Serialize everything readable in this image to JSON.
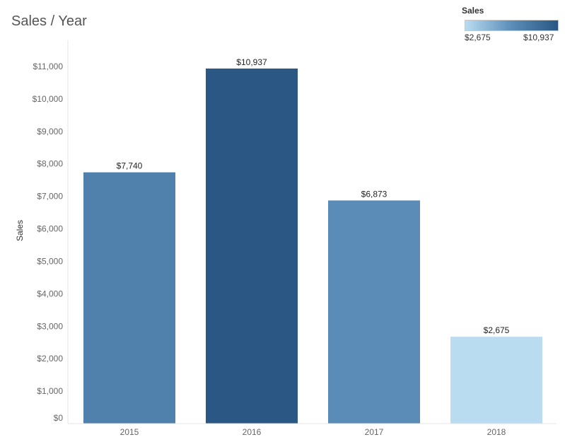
{
  "chart_data": {
    "type": "bar",
    "title": "Sales / Year",
    "xlabel": "",
    "ylabel": "Sales",
    "categories": [
      "2015",
      "2016",
      "2017",
      "2018"
    ],
    "values": [
      7740,
      10937,
      6873,
      2675
    ],
    "data_labels": [
      "$7,740",
      "$10,937",
      "$6,873",
      "$2,675"
    ],
    "ylim": [
      0,
      11500
    ],
    "yticks": [
      0,
      1000,
      2000,
      3000,
      4000,
      5000,
      6000,
      7000,
      8000,
      9000,
      10000,
      11000
    ],
    "ytick_labels": [
      "$0",
      "$1,000",
      "$2,000",
      "$3,000",
      "$4,000",
      "$5,000",
      "$6,000",
      "$7,000",
      "$8,000",
      "$9,000",
      "$10,000",
      "$11,000"
    ],
    "grid": false,
    "legend": {
      "title": "Sales",
      "placement": "top-right",
      "min_label": "$2,675",
      "max_label": "$10,937",
      "min_value": 2675,
      "max_value": 10937,
      "color_low": "#b9dcf0",
      "color_high": "#2a5783"
    }
  }
}
